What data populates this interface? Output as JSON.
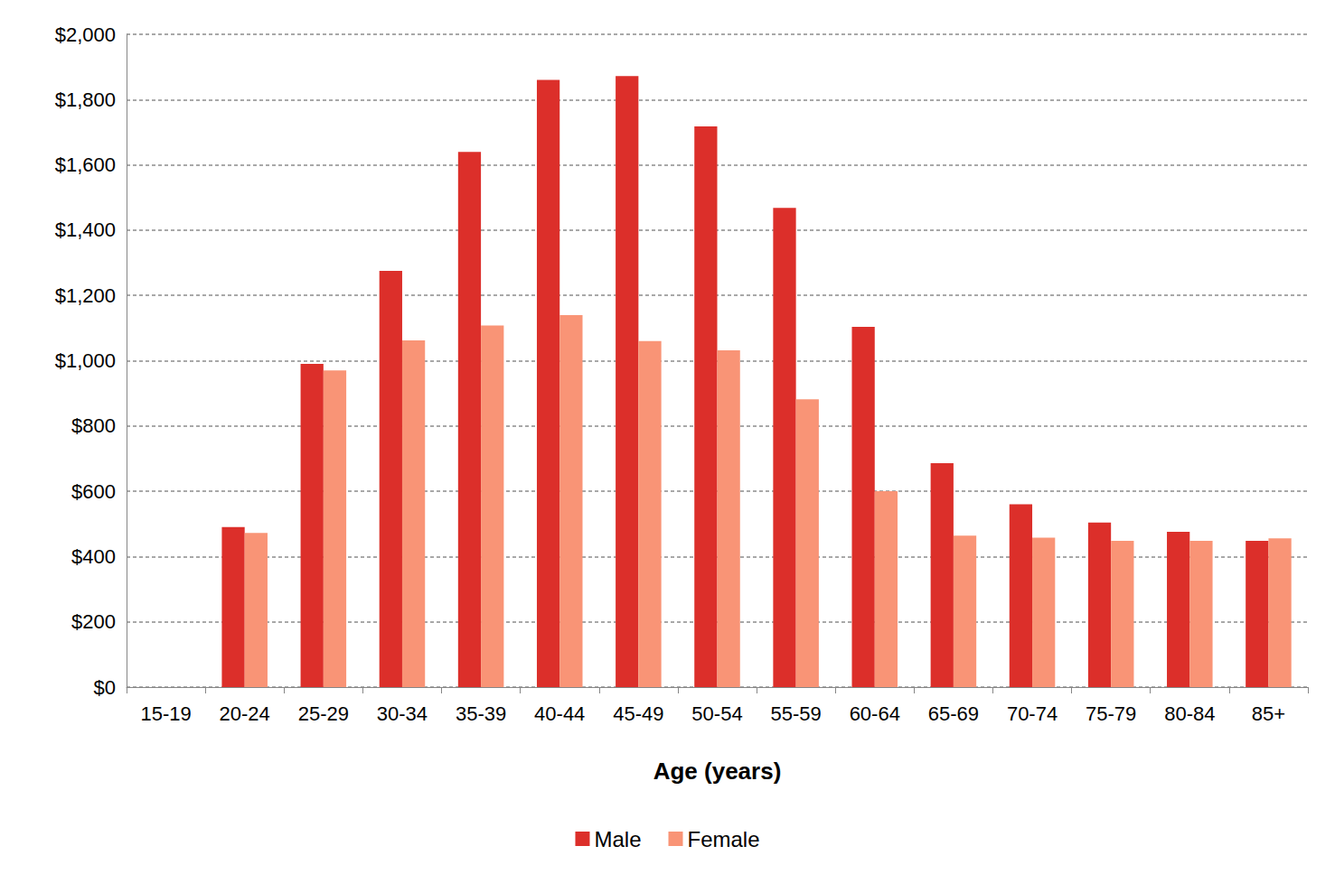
{
  "chart_data": {
    "type": "bar",
    "x_label": "Age (years)",
    "categories": [
      "15-19",
      "20-24",
      "25-29",
      "30-34",
      "35-39",
      "40-44",
      "45-49",
      "50-54",
      "55-59",
      "60-64",
      "65-69",
      "70-74",
      "75-79",
      "80-84",
      "85+"
    ],
    "series": [
      {
        "name": "Male",
        "color": "#dc2f2a",
        "values": [
          null,
          490,
          990,
          1275,
          1640,
          1860,
          1872,
          1718,
          1468,
          1104,
          686,
          560,
          504,
          476,
          448
        ]
      },
      {
        "name": "Female",
        "color": "#f99476",
        "values": [
          null,
          472,
          970,
          1062,
          1108,
          1140,
          1060,
          1032,
          882,
          600,
          464,
          458,
          448,
          448,
          456
        ]
      }
    ],
    "ylim": [
      0,
      2000
    ],
    "yticks": [
      {
        "value": 0,
        "label": "$0"
      },
      {
        "value": 200,
        "label": "$200"
      },
      {
        "value": 400,
        "label": "$400"
      },
      {
        "value": 600,
        "label": "$600"
      },
      {
        "value": 800,
        "label": "$800"
      },
      {
        "value": 1000,
        "label": "$1,000"
      },
      {
        "value": 1200,
        "label": "$1,200"
      },
      {
        "value": 1400,
        "label": "$1,400"
      },
      {
        "value": 1600,
        "label": "$1,600"
      },
      {
        "value": 1800,
        "label": "$1,800"
      },
      {
        "value": 2000,
        "label": "$2,000"
      }
    ],
    "grid": true,
    "legend": "bottom"
  }
}
